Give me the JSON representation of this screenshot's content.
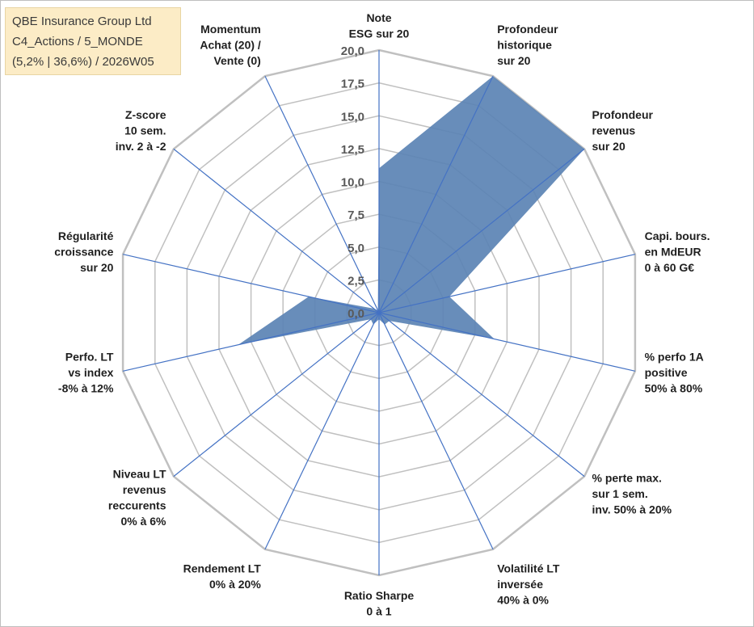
{
  "info": {
    "line1": "QBE Insurance Group Ltd",
    "line2": "C4_Actions / 5_MONDE",
    "line3": "(5,2% | 36,6%) / 2026W05"
  },
  "chart_data": {
    "type": "radar",
    "axes": [
      {
        "label": [
          "Note",
          "ESG sur 20"
        ],
        "value": 11.0
      },
      {
        "label": [
          "Profondeur",
          "historique",
          "sur 20"
        ],
        "value": 20.0
      },
      {
        "label": [
          "Profondeur",
          "revenus",
          "sur 20"
        ],
        "value": 20.0
      },
      {
        "label": [
          "Capi. bours.",
          "en MdEUR",
          "0 à 60 G€"
        ],
        "value": 5.5
      },
      {
        "label": [
          "% perfo 1A",
          "positive",
          "50% à 80%"
        ],
        "value": 9.0
      },
      {
        "label": [
          "% perte max.",
          "sur 1 sem.",
          "inv. 50% à 20%"
        ],
        "value": 1.0
      },
      {
        "label": [
          "Volatilité LT",
          "inversée",
          "40% à 0%"
        ],
        "value": 1.0
      },
      {
        "label": [
          "Ratio Sharpe",
          "0 à 1"
        ],
        "value": 0.5
      },
      {
        "label": [
          "Rendement LT",
          "0% à 20%"
        ],
        "value": 1.0
      },
      {
        "label": [
          "Niveau LT",
          "revenus",
          "reccurents",
          "0% à 6%"
        ],
        "value": 0.8
      },
      {
        "label": [
          "Perfo. LT",
          "vs index",
          "-8% à 12%"
        ],
        "value": 11.0
      },
      {
        "label": [
          "Régularité",
          "croissance",
          "sur 20"
        ],
        "value": 5.5
      },
      {
        "label": [
          "Z-score",
          "10 sem.",
          "inv. 2 à -2"
        ],
        "value": 0.5
      },
      {
        "label": [
          "Momentum",
          "Achat (20) /",
          "Vente (0)"
        ],
        "value": 0.2
      }
    ],
    "ticks": [
      "0,0",
      "2,5",
      "5,0",
      "7,5",
      "10,0",
      "12,5",
      "15,0",
      "17,5",
      "20,0"
    ],
    "rmin": 0,
    "rmax": 20,
    "gridlines": true,
    "colors": {
      "fill": "#5b83b4",
      "axis": "#4472c4",
      "grid": "#c0c0c0"
    }
  }
}
